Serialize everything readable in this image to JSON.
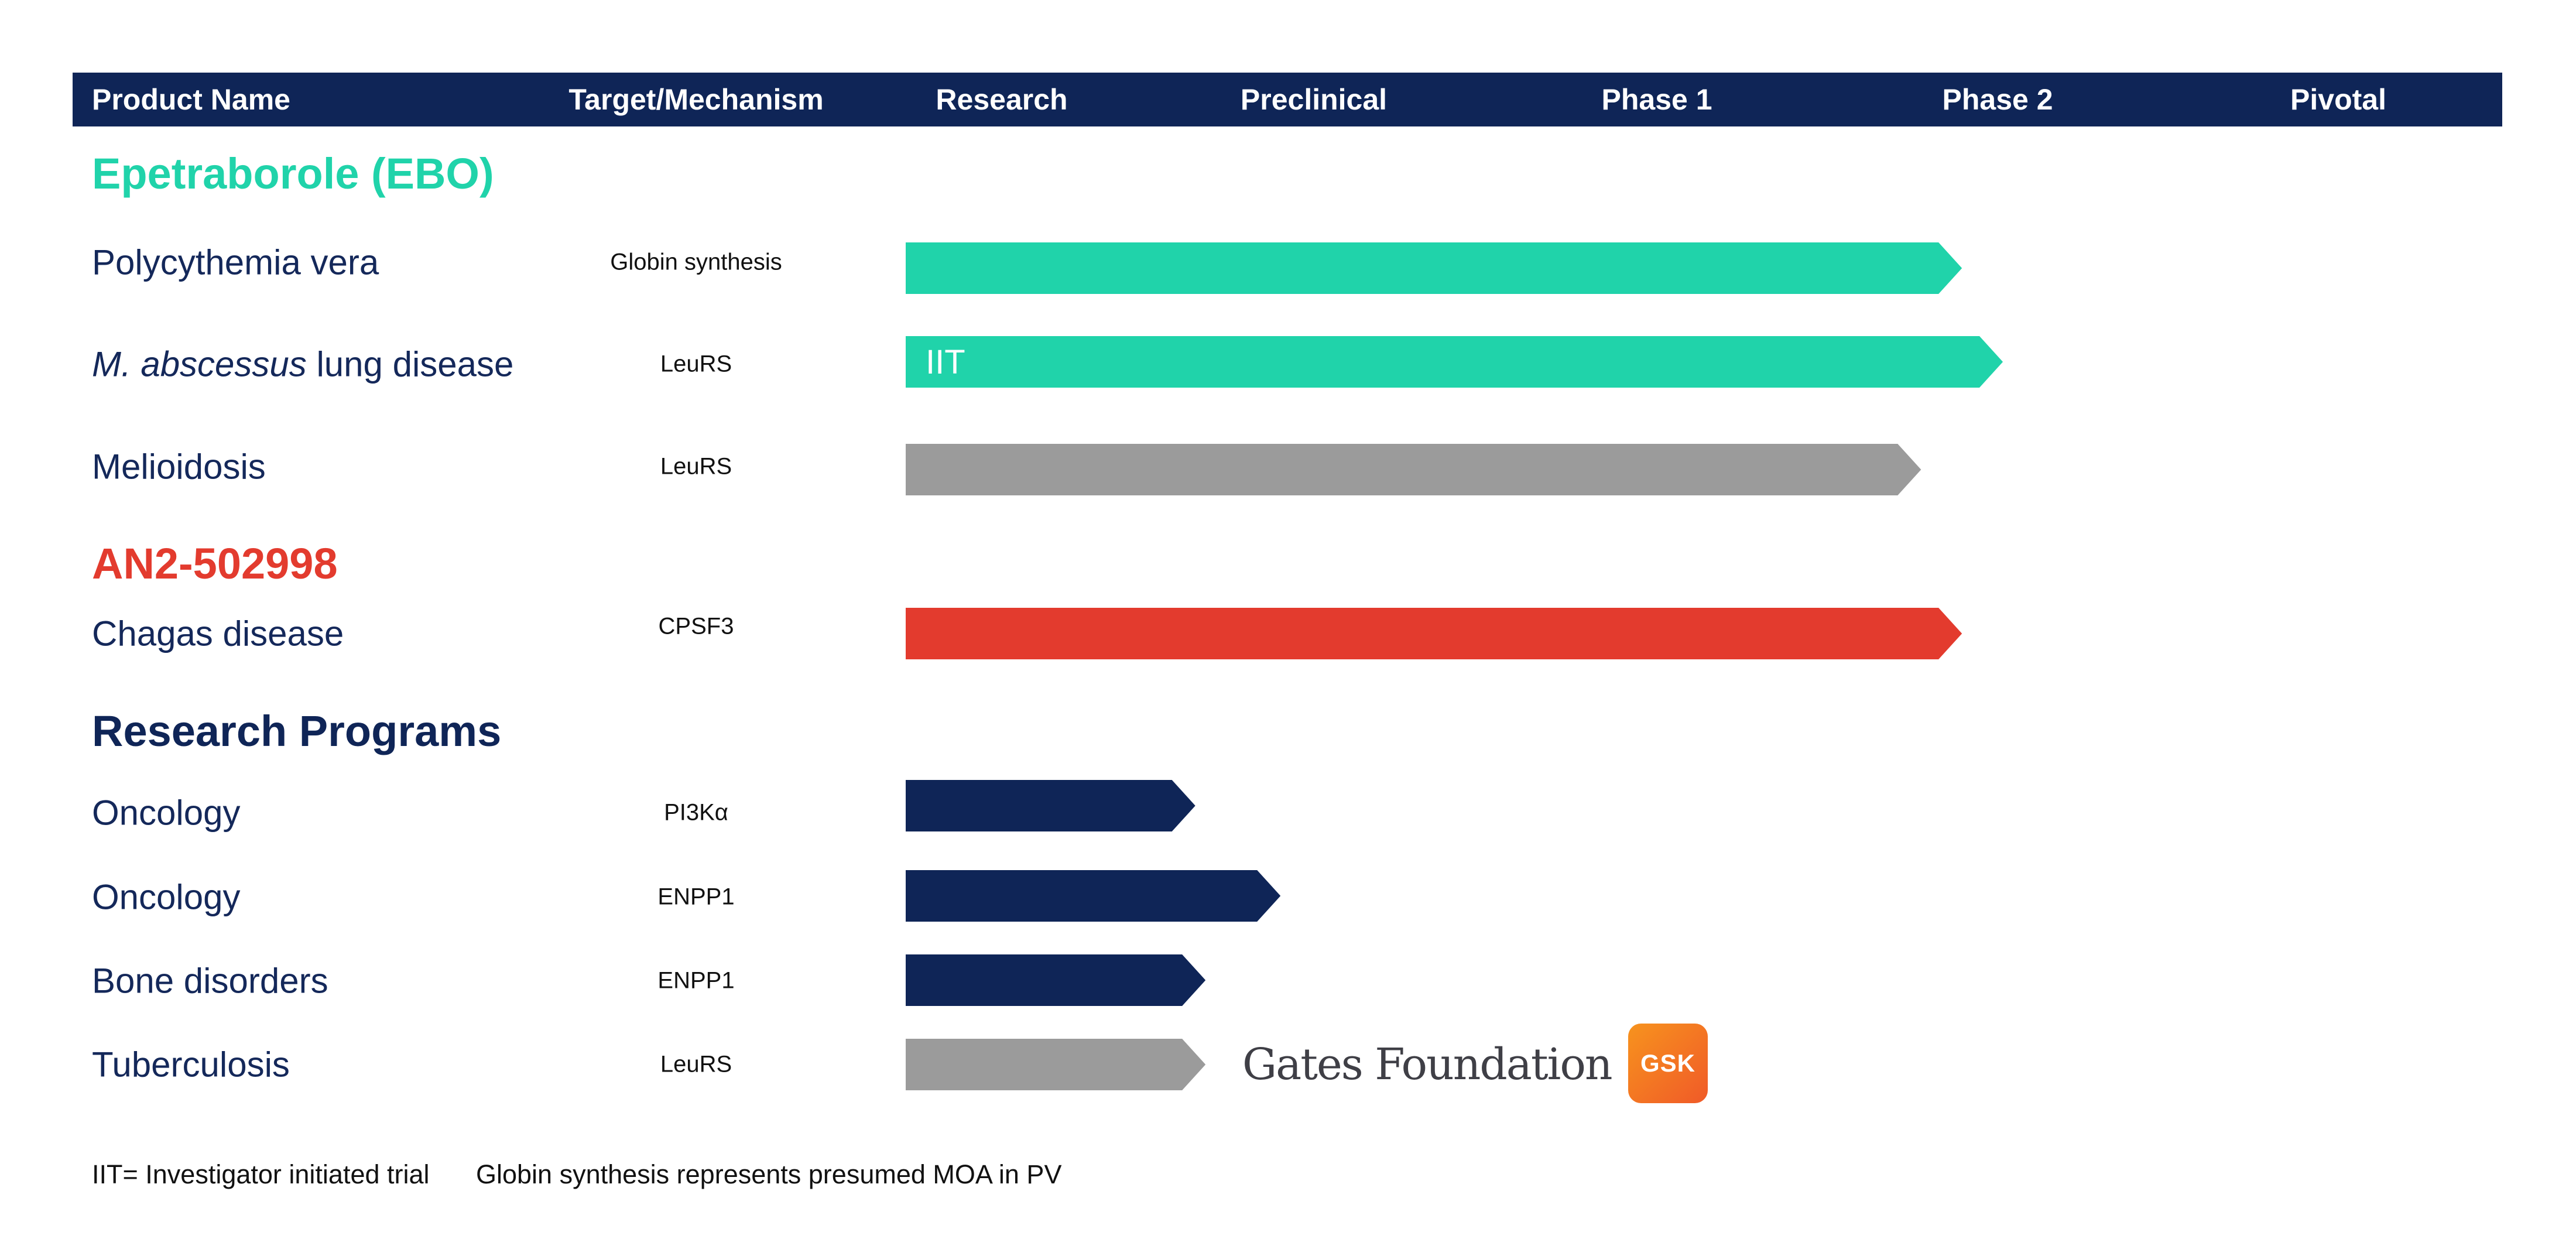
{
  "colors": {
    "header_bg": "#0f2557",
    "teal": "#20d3aa",
    "gray": "#9b9b9b",
    "red": "#e33b2e",
    "navy": "#0f2557"
  },
  "header": {
    "product_name": "Product Name",
    "target_mechanism": "Target/Mechanism",
    "stages": [
      "Research",
      "Preclinical",
      "Phase 1",
      "Phase 2",
      "Pivotal"
    ]
  },
  "groups": [
    {
      "title": "Epetraborole (EBO)",
      "color": "#20d3aa"
    },
    {
      "title": "AN2-502998",
      "color": "#e33b2e"
    },
    {
      "title": "Research Programs",
      "color": "#0f2557"
    }
  ],
  "rows": [
    {
      "label_italic": "",
      "label": "Polycythemia vera",
      "mechanism": "Globin synthesis"
    },
    {
      "label_italic": "M. abscessus",
      "label": " lung disease",
      "mechanism": "LeuRS"
    },
    {
      "label_italic": "",
      "label": "Melioidosis",
      "mechanism": "LeuRS"
    },
    {
      "label_italic": "",
      "label": "Chagas disease",
      "mechanism": "CPSF3"
    },
    {
      "label_italic": "",
      "label": "Oncology",
      "mechanism": "PI3Kα"
    },
    {
      "label_italic": "",
      "label": "Oncology",
      "mechanism": "ENPP1"
    },
    {
      "label_italic": "",
      "label": "Bone disorders",
      "mechanism": "ENPP1"
    },
    {
      "label_italic": "",
      "label": "Tuberculosis",
      "mechanism": "LeuRS"
    }
  ],
  "partners": {
    "gates": "Gates Foundation",
    "gsk": "GSK"
  },
  "footnotes": {
    "iit": "IIT= Investigator initiated trial",
    "globin": "Globin synthesis represents presumed MOA in PV"
  },
  "chart_data": {
    "type": "bar",
    "orientation": "horizontal",
    "title": "",
    "x_categories": [
      "Research",
      "Preclinical",
      "Phase 1",
      "Phase 2",
      "Pivotal"
    ],
    "series": [
      {
        "program": "Polycythemia vera",
        "stage_progress": 3.1,
        "color": "#20d3aa",
        "label": ""
      },
      {
        "program": "M. abscessus lung disease",
        "stage_progress": 3.22,
        "color": "#20d3aa",
        "label": "IIT"
      },
      {
        "program": "Melioidosis",
        "stage_progress": 2.98,
        "color": "#9b9b9b",
        "label": ""
      },
      {
        "program": "Chagas disease",
        "stage_progress": 3.1,
        "color": "#e33b2e",
        "label": ""
      },
      {
        "program": "Oncology (PI3Kα)",
        "stage_progress": 0.85,
        "color": "#0f2557",
        "label": ""
      },
      {
        "program": "Oncology (ENPP1)",
        "stage_progress": 1.1,
        "color": "#0f2557",
        "label": ""
      },
      {
        "program": "Bone disorders",
        "stage_progress": 0.88,
        "color": "#0f2557",
        "label": ""
      },
      {
        "program": "Tuberculosis",
        "stage_progress": 0.88,
        "color": "#9b9b9b",
        "label": ""
      }
    ]
  }
}
